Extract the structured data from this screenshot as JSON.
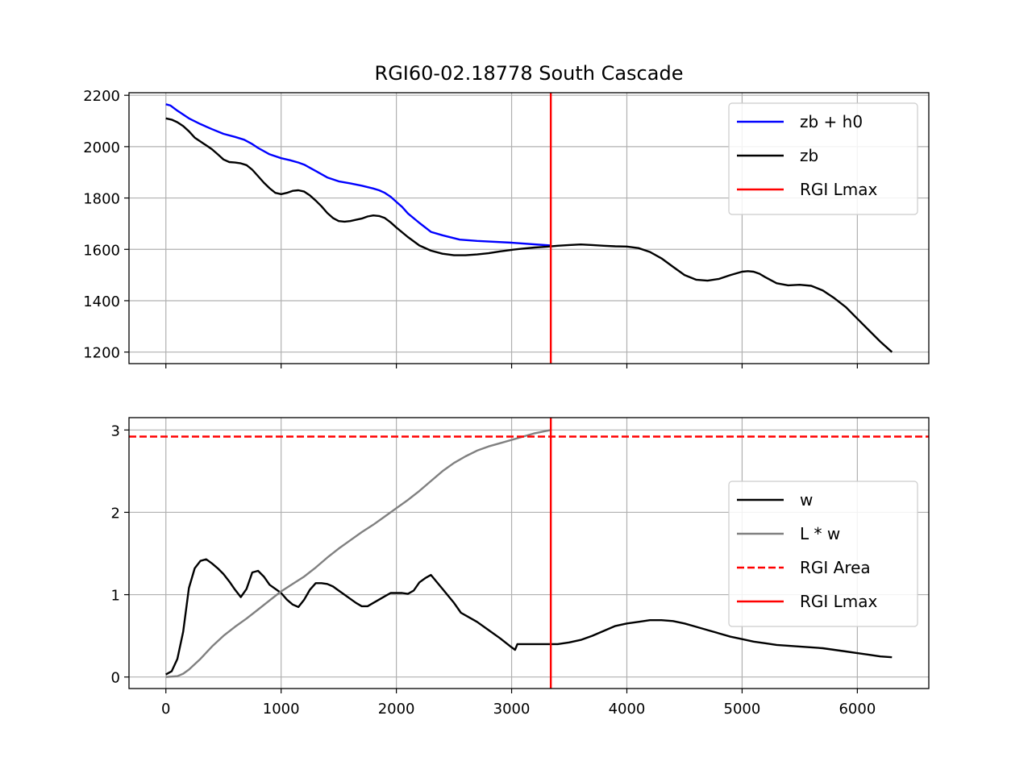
{
  "chart_data": [
    {
      "type": "line",
      "title": "RGI60-02.18778 South Cascade",
      "xlabel": "",
      "ylabel": "",
      "xlim": [
        -320,
        6620
      ],
      "ylim": [
        1155,
        2210
      ],
      "xticks": [
        0,
        1000,
        2000,
        3000,
        4000,
        5000,
        6000
      ],
      "xtick_labels_visible": false,
      "yticks": [
        1200,
        1400,
        1600,
        1800,
        2000,
        2200
      ],
      "ytick_labels": [
        "1200",
        "1400",
        "1600",
        "1800",
        "2000",
        "2200"
      ],
      "grid": true,
      "legend_position": "upper-right",
      "series": [
        {
          "name": "zb + h0",
          "color": "#0000ff",
          "x": [
            0,
            40,
            100,
            200,
            300,
            400,
            500,
            600,
            680,
            750,
            800,
            900,
            1000,
            1080,
            1150,
            1200,
            1300,
            1400,
            1500,
            1600,
            1700,
            1800,
            1850,
            1900,
            1950,
            2000,
            2050,
            2100,
            2200,
            2300,
            2400,
            2550,
            2700,
            3000,
            3340
          ],
          "y": [
            2165,
            2160,
            2140,
            2110,
            2088,
            2068,
            2050,
            2038,
            2027,
            2010,
            1995,
            1970,
            1955,
            1947,
            1938,
            1930,
            1905,
            1880,
            1865,
            1857,
            1848,
            1837,
            1830,
            1820,
            1805,
            1785,
            1765,
            1740,
            1703,
            1668,
            1655,
            1638,
            1633,
            1626,
            1615
          ]
        },
        {
          "name": "zb",
          "color": "#000000",
          "x": [
            0,
            50,
            100,
            150,
            200,
            250,
            300,
            350,
            400,
            450,
            500,
            550,
            600,
            650,
            700,
            750,
            800,
            850,
            900,
            950,
            1000,
            1050,
            1100,
            1150,
            1200,
            1250,
            1300,
            1350,
            1400,
            1450,
            1500,
            1550,
            1600,
            1650,
            1700,
            1750,
            1800,
            1850,
            1900,
            1950,
            2000,
            2100,
            2200,
            2300,
            2400,
            2500,
            2600,
            2700,
            2800,
            2900,
            3000,
            3100,
            3200,
            3300,
            3400,
            3500,
            3600,
            3700,
            3800,
            3900,
            4000,
            4100,
            4200,
            4300,
            4400,
            4500,
            4600,
            4700,
            4800,
            4900,
            5000,
            5050,
            5100,
            5150,
            5200,
            5300,
            5400,
            5500,
            5600,
            5700,
            5800,
            5900,
            6000,
            6100,
            6200,
            6300
          ],
          "y": [
            2110,
            2105,
            2095,
            2080,
            2060,
            2035,
            2020,
            2005,
            1990,
            1970,
            1950,
            1940,
            1938,
            1935,
            1928,
            1910,
            1885,
            1860,
            1838,
            1820,
            1815,
            1820,
            1828,
            1830,
            1825,
            1810,
            1790,
            1768,
            1742,
            1722,
            1710,
            1708,
            1710,
            1715,
            1720,
            1728,
            1732,
            1730,
            1722,
            1705,
            1685,
            1648,
            1615,
            1595,
            1583,
            1577,
            1577,
            1580,
            1585,
            1592,
            1598,
            1603,
            1607,
            1610,
            1614,
            1617,
            1619,
            1617,
            1614,
            1612,
            1611,
            1605,
            1590,
            1565,
            1532,
            1500,
            1482,
            1478,
            1485,
            1500,
            1513,
            1515,
            1513,
            1505,
            1492,
            1468,
            1460,
            1462,
            1458,
            1440,
            1410,
            1375,
            1330,
            1285,
            1240,
            1200
          ]
        },
        {
          "name": "RGI Lmax",
          "color": "#ff0000",
          "vline_x": 3340
        }
      ]
    },
    {
      "type": "line",
      "title": "",
      "xlabel": "",
      "ylabel": "",
      "xlim": [
        -320,
        6620
      ],
      "ylim": [
        -0.14,
        3.15
      ],
      "xticks": [
        0,
        1000,
        2000,
        3000,
        4000,
        5000,
        6000
      ],
      "xtick_labels": [
        "0",
        "1000",
        "2000",
        "3000",
        "4000",
        "5000",
        "6000"
      ],
      "yticks": [
        0,
        1,
        2,
        3
      ],
      "ytick_labels": [
        "0",
        "1",
        "2",
        "3"
      ],
      "grid": true,
      "legend_position": "center-right",
      "series": [
        {
          "name": "w",
          "color": "#000000",
          "x": [
            0,
            50,
            100,
            150,
            200,
            250,
            300,
            350,
            400,
            450,
            500,
            550,
            600,
            650,
            700,
            750,
            800,
            850,
            900,
            1000,
            1050,
            1100,
            1150,
            1200,
            1250,
            1300,
            1350,
            1400,
            1450,
            1500,
            1550,
            1600,
            1650,
            1700,
            1750,
            1800,
            1850,
            1900,
            1950,
            2000,
            2050,
            2100,
            2150,
            2200,
            2250,
            2300,
            2400,
            2500,
            2560,
            2700,
            2800,
            2900,
            3000,
            3030,
            3050,
            3340,
            3400,
            3500,
            3600,
            3700,
            3800,
            3900,
            4000,
            4100,
            4200,
            4300,
            4400,
            4500,
            4600,
            4700,
            4800,
            4900,
            5000,
            5100,
            5200,
            5300,
            5400,
            5500,
            5600,
            5700,
            5800,
            5900,
            6000,
            6100,
            6200,
            6300
          ],
          "y": [
            0.03,
            0.07,
            0.22,
            0.55,
            1.08,
            1.32,
            1.41,
            1.43,
            1.38,
            1.32,
            1.25,
            1.16,
            1.06,
            0.97,
            1.07,
            1.27,
            1.29,
            1.22,
            1.12,
            1.02,
            0.94,
            0.88,
            0.85,
            0.94,
            1.06,
            1.14,
            1.14,
            1.13,
            1.1,
            1.05,
            1.0,
            0.95,
            0.9,
            0.86,
            0.86,
            0.9,
            0.94,
            0.98,
            1.02,
            1.02,
            1.02,
            1.01,
            1.05,
            1.15,
            1.2,
            1.24,
            1.07,
            0.9,
            0.78,
            0.67,
            0.57,
            0.47,
            0.36,
            0.33,
            0.4,
            0.4,
            0.4,
            0.42,
            0.45,
            0.5,
            0.56,
            0.62,
            0.65,
            0.67,
            0.69,
            0.69,
            0.68,
            0.65,
            0.61,
            0.57,
            0.53,
            0.49,
            0.46,
            0.43,
            0.41,
            0.39,
            0.38,
            0.37,
            0.36,
            0.35,
            0.33,
            0.31,
            0.29,
            0.27,
            0.25,
            0.24
          ]
        },
        {
          "name": "L * w",
          "color": "#808080",
          "x": [
            0,
            100,
            150,
            200,
            300,
            400,
            500,
            600,
            700,
            800,
            900,
            1000,
            1100,
            1200,
            1300,
            1400,
            1500,
            1600,
            1700,
            1800,
            1900,
            2000,
            2100,
            2200,
            2300,
            2400,
            2500,
            2600,
            2700,
            2800,
            2900,
            3000,
            3100,
            3200,
            3340
          ],
          "y": [
            0.0,
            0.01,
            0.04,
            0.09,
            0.22,
            0.37,
            0.5,
            0.61,
            0.71,
            0.82,
            0.93,
            1.04,
            1.13,
            1.22,
            1.33,
            1.45,
            1.56,
            1.66,
            1.76,
            1.85,
            1.95,
            2.05,
            2.15,
            2.26,
            2.38,
            2.5,
            2.6,
            2.68,
            2.75,
            2.8,
            2.84,
            2.88,
            2.92,
            2.96,
            3.0
          ]
        },
        {
          "name": "RGI Area",
          "color": "#ff0000",
          "dashed": true,
          "hline_y": 2.92
        },
        {
          "name": "RGI Lmax",
          "color": "#ff0000",
          "vline_x": 3340
        }
      ]
    }
  ]
}
